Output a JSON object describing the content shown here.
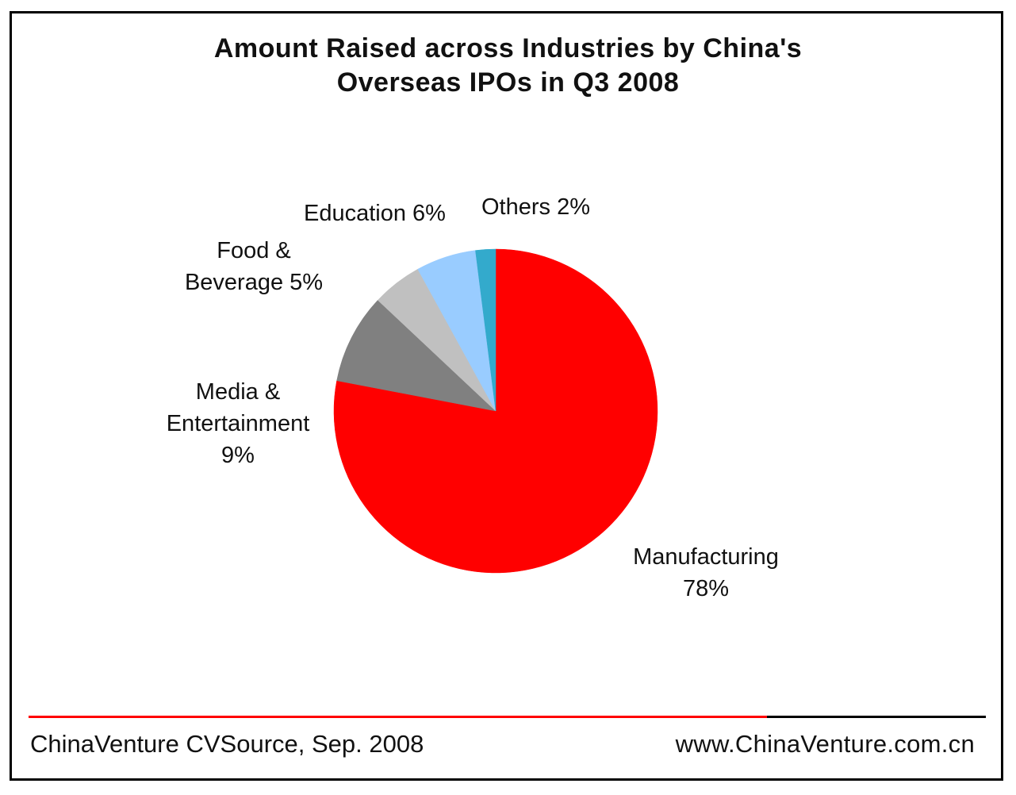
{
  "chart_data": {
    "type": "pie",
    "title_lines": [
      "Amount Raised across Industries by China's",
      "Overseas IPOs in Q3 2008"
    ],
    "slices": [
      {
        "name_lines": [
          "Manufacturing"
        ],
        "value_label": "78%",
        "value": 78,
        "color": "#ff0000"
      },
      {
        "name_lines": [
          "Media &",
          "Entertainment"
        ],
        "value_label": "9%",
        "value": 9,
        "color": "#808080"
      },
      {
        "name_lines": [
          "Food &"
        ],
        "value_label": "Beverage 5%",
        "value": 5,
        "color": "#c0c0c0"
      },
      {
        "name_lines": [],
        "value_label": "Education 6%",
        "value": 6,
        "color": "#99ccff"
      },
      {
        "name_lines": [],
        "value_label": "Others 2%",
        "value": 2,
        "color": "#33aacc"
      }
    ],
    "legend": "none"
  },
  "footer": {
    "source": "ChinaVenture CVSource, Sep. 2008",
    "website": "www.ChinaVenture.com.cn",
    "line_colors": [
      "#ff0000",
      "#000000"
    ]
  }
}
